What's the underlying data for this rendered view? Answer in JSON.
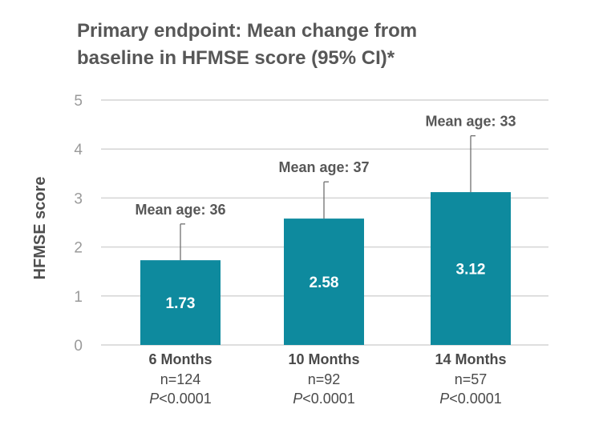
{
  "title": {
    "line1": "Primary endpoint: Mean change from",
    "line2": "baseline in HFMSE score (95% CI)*"
  },
  "chart_data": {
    "type": "bar",
    "ylabel": "HFMSE score",
    "ylim": [
      0,
      5
    ],
    "yticks": [
      0,
      1,
      2,
      3,
      4,
      5
    ],
    "grid": true,
    "bar_color": "#0e8a9e",
    "categories": [
      "6 Months",
      "10 Months",
      "14 Months"
    ],
    "values": [
      1.73,
      2.58,
      3.12
    ],
    "value_labels": [
      "1.73",
      "2.58",
      "3.12"
    ],
    "ci_upper": [
      2.47,
      3.33,
      4.27
    ],
    "annotations": [
      "Mean age: 36",
      "Mean age: 37",
      "Mean age: 33"
    ],
    "n_labels": [
      "n=124",
      "n=92",
      "n=57"
    ],
    "p_values": [
      {
        "prefix": "P",
        "rest": "<0.0001"
      },
      {
        "prefix": "P",
        "rest": "<0.0001"
      },
      {
        "prefix": "P",
        "rest": "<0.0001"
      }
    ]
  }
}
